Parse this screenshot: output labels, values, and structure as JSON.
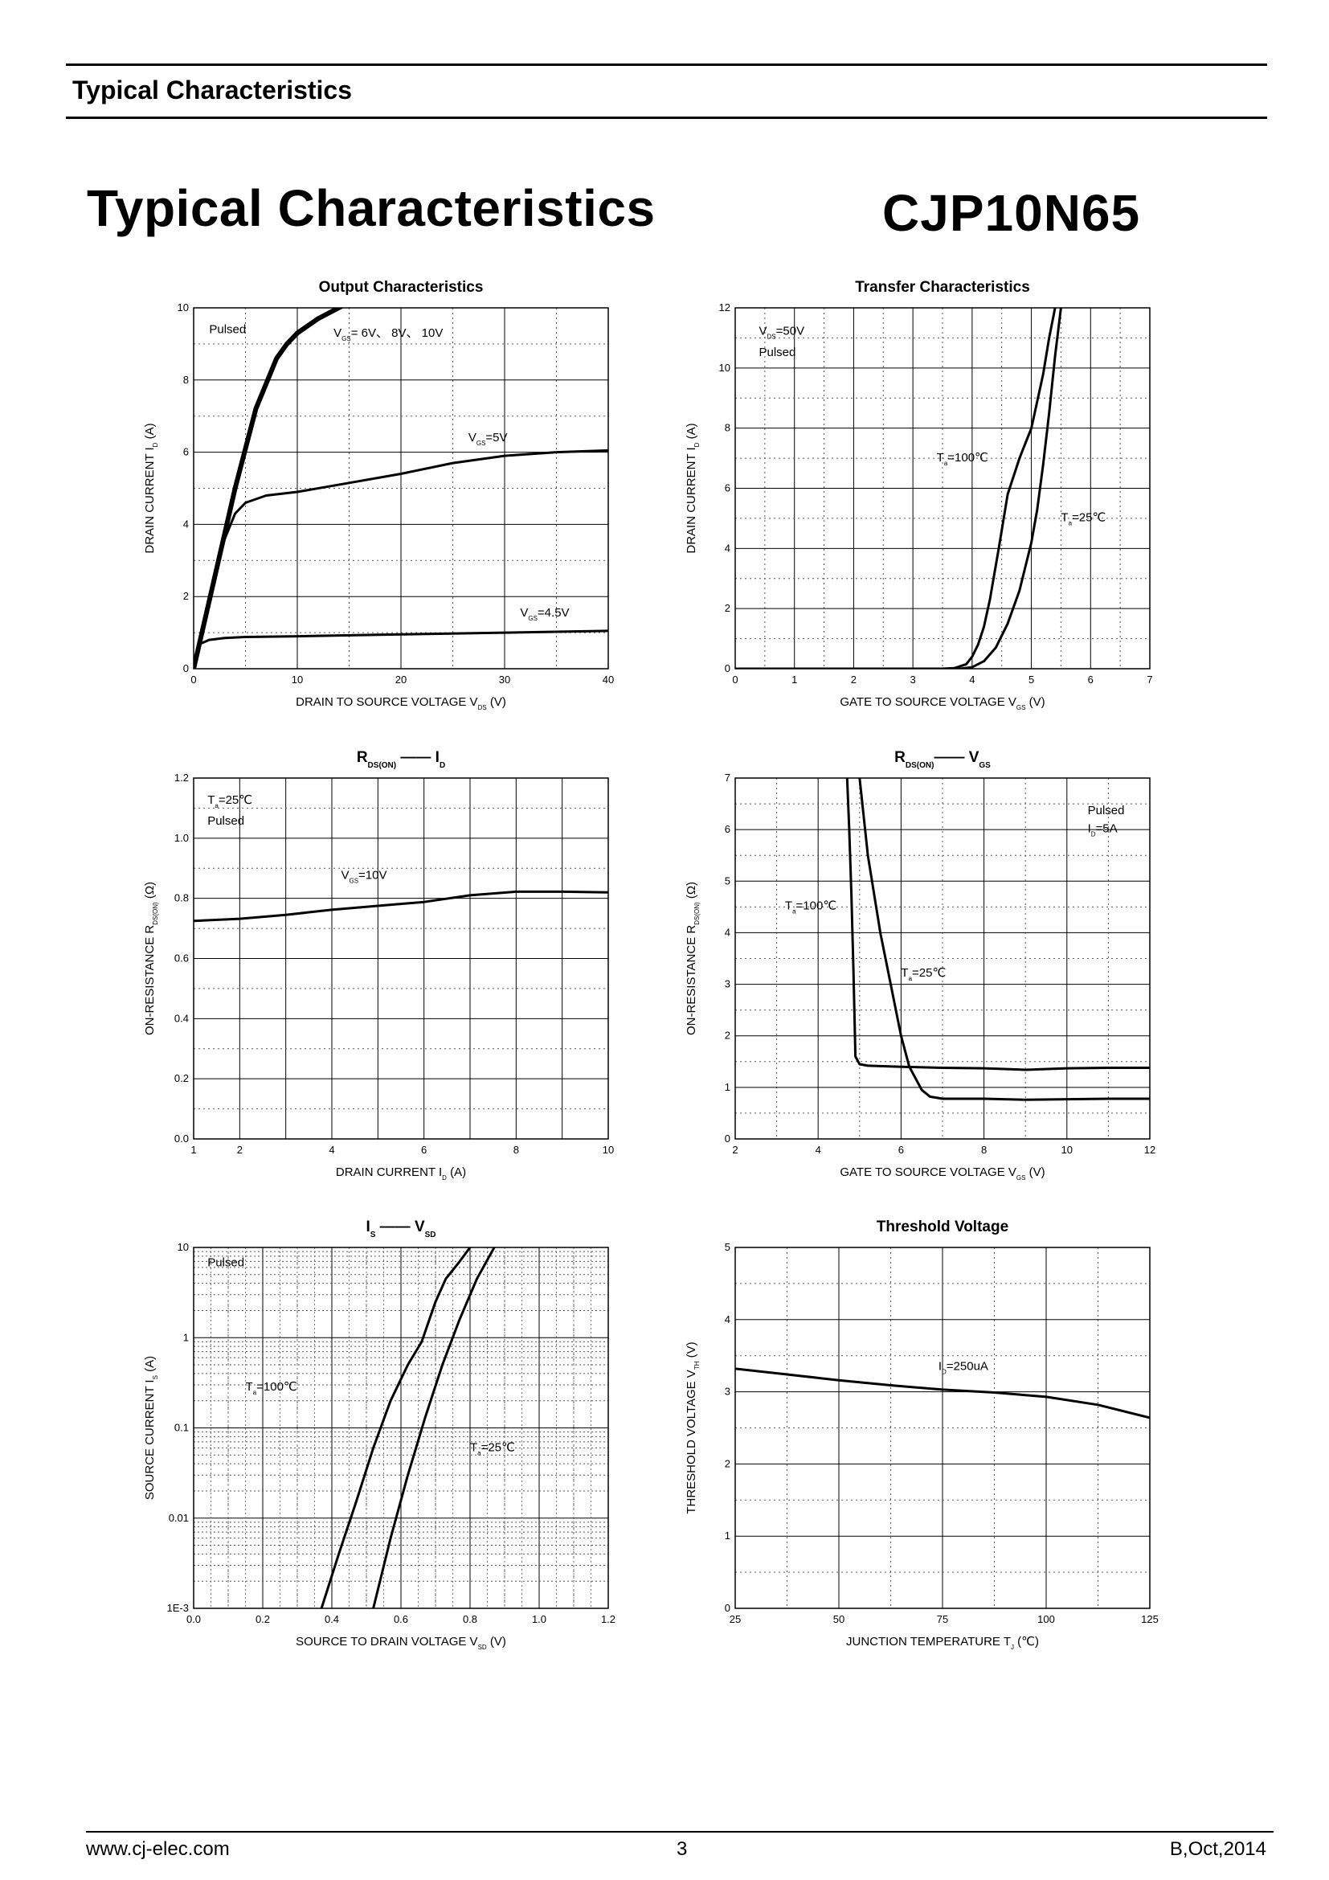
{
  "header": {
    "section_title": "Typical Characteristics"
  },
  "page_title": "Typical Characteristics",
  "part_number": "CJP10N65",
  "footer": {
    "website": "www.cj-elec.com",
    "page_number": "3",
    "revision": "B,Oct,2014"
  },
  "colors": {
    "ink": "#000000",
    "paper": "#ffffff"
  },
  "chart_data": [
    {
      "id": "output",
      "type": "line",
      "title": [
        {
          "t": "Output Characteristics"
        }
      ],
      "xlabel": [
        {
          "t": "DRAIN TO SOURCE VOLTAGE"
        },
        {
          "t": "V"
        },
        {
          "t": "DS",
          "sub": true
        },
        {
          "t": "(V)"
        }
      ],
      "ylabel": [
        {
          "t": "DRAIN CURRENT"
        },
        {
          "t": "I"
        },
        {
          "t": "D",
          "sub": true
        },
        {
          "t": "(A)"
        }
      ],
      "xlim": [
        0,
        40
      ],
      "ylim": [
        0,
        10
      ],
      "xticks": [
        "0",
        "10",
        "20",
        "30",
        "40"
      ],
      "yticks": [
        "0",
        "2",
        "4",
        "6",
        "8",
        "10"
      ],
      "notes": [
        {
          "x": 1.5,
          "y": 9.3,
          "text": [
            {
              "t": "Pulsed"
            }
          ]
        },
        {
          "x": 13.5,
          "y": 9.2,
          "text": [
            {
              "t": "V"
            },
            {
              "t": "GS",
              "sub": true
            },
            {
              "t": "= 6V、 8V、 10V"
            }
          ]
        },
        {
          "x": 26.5,
          "y": 6.3,
          "text": [
            {
              "t": "V"
            },
            {
              "t": "GS",
              "sub": true
            },
            {
              "t": "=5V"
            }
          ]
        },
        {
          "x": 31.5,
          "y": 1.45,
          "text": [
            {
              "t": "V"
            },
            {
              "t": "GS",
              "sub": true
            },
            {
              "t": "=4.5V"
            }
          ]
        }
      ],
      "series": [
        {
          "name": "VGS = 6V, 8V, 10V",
          "width": 6,
          "x": [
            0,
            2,
            4,
            6,
            8,
            9,
            10,
            12,
            14,
            15
          ],
          "y": [
            0,
            2.5,
            5,
            7.2,
            8.6,
            9.0,
            9.3,
            9.7,
            10.0,
            10.15
          ]
        },
        {
          "name": "VGS = 5V",
          "width": 3,
          "x": [
            0,
            2,
            3,
            4,
            5,
            7,
            10,
            15,
            20,
            25,
            30,
            35,
            40
          ],
          "y": [
            0,
            2.6,
            3.6,
            4.3,
            4.6,
            4.8,
            4.9,
            5.15,
            5.4,
            5.7,
            5.9,
            6.0,
            6.05
          ]
        },
        {
          "name": "VGS = 4.5V",
          "width": 3,
          "x": [
            0,
            0.3,
            0.7,
            1.5,
            3,
            5,
            10,
            20,
            30,
            40
          ],
          "y": [
            0,
            0.5,
            0.7,
            0.8,
            0.85,
            0.88,
            0.9,
            0.95,
            1.0,
            1.05
          ]
        }
      ]
    },
    {
      "id": "transfer",
      "type": "line",
      "title": [
        {
          "t": "Transfer Characteristics"
        }
      ],
      "xlabel": [
        {
          "t": "GATE TO SOURCE VOLTAGE"
        },
        {
          "t": "V"
        },
        {
          "t": "GS",
          "sub": true
        },
        {
          "t": "(V)"
        }
      ],
      "ylabel": [
        {
          "t": "DRAIN CURRENT"
        },
        {
          "t": "I"
        },
        {
          "t": "D",
          "sub": true
        },
        {
          "t": "(A)"
        }
      ],
      "xlim": [
        0,
        7
      ],
      "ylim": [
        0,
        12
      ],
      "xticks": [
        "0",
        "1",
        "2",
        "3",
        "4",
        "5",
        "6",
        "7"
      ],
      "yticks": [
        "0",
        "2",
        "4",
        "6",
        "8",
        "10",
        "12"
      ],
      "notes": [
        {
          "x": 0.4,
          "y": 11.1,
          "text": [
            {
              "t": "V"
            },
            {
              "t": "DS",
              "sub": true
            },
            {
              "t": "=50V"
            }
          ]
        },
        {
          "x": 0.4,
          "y": 10.4,
          "text": [
            {
              "t": "Pulsed"
            }
          ]
        },
        {
          "x": 3.4,
          "y": 6.9,
          "text": [
            {
              "t": "T"
            },
            {
              "t": "a",
              "sub": true
            },
            {
              "t": "=100℃"
            }
          ]
        },
        {
          "x": 5.5,
          "y": 4.9,
          "text": [
            {
              "t": "T"
            },
            {
              "t": "a",
              "sub": true
            },
            {
              "t": "=25℃"
            }
          ]
        }
      ],
      "series": [
        {
          "name": "Ta = 100°C",
          "width": 3,
          "x": [
            0,
            3.5,
            3.7,
            3.9,
            4.0,
            4.1,
            4.2,
            4.3,
            4.45,
            4.6,
            4.8,
            5.0,
            5.2,
            5.3,
            5.4
          ],
          "y": [
            0,
            0,
            0.02,
            0.15,
            0.4,
            0.8,
            1.4,
            2.3,
            4.0,
            5.8,
            7.0,
            8.0,
            9.8,
            11.0,
            12.0
          ]
        },
        {
          "name": "Ta = 25°C",
          "width": 3,
          "x": [
            0,
            3.8,
            4.0,
            4.2,
            4.4,
            4.6,
            4.8,
            5.0,
            5.1,
            5.2,
            5.3,
            5.4,
            5.5
          ],
          "y": [
            0,
            0,
            0.05,
            0.25,
            0.7,
            1.5,
            2.6,
            4.2,
            5.3,
            6.8,
            8.5,
            10.4,
            12.0
          ]
        }
      ]
    },
    {
      "id": "rds-id",
      "type": "line",
      "title": [
        {
          "t": "R"
        },
        {
          "t": "DS(ON)",
          "sub": true
        },
        {
          "t": " —— I"
        },
        {
          "t": "D",
          "sub": true
        }
      ],
      "xlabel": [
        {
          "t": "DRAIN CURRENT"
        },
        {
          "t": "I"
        },
        {
          "t": "D",
          "sub": true
        },
        {
          "t": "(A)"
        }
      ],
      "ylabel": [
        {
          "t": "ON-RESISTANCE"
        },
        {
          "t": "R"
        },
        {
          "t": "DS(ON)",
          "sub": true
        },
        {
          "t": "(Ω)"
        }
      ],
      "xlim": [
        1,
        10
      ],
      "ylim": [
        0,
        1.2
      ],
      "xticks": [
        "1",
        "2",
        "4",
        "6",
        "8",
        "10"
      ],
      "xtick_values": [
        1,
        2,
        4,
        6,
        8,
        10
      ],
      "xgrid": [
        2,
        3,
        4,
        5,
        6,
        7,
        8,
        9
      ],
      "yticks": [
        "0.0",
        "0.2",
        "0.4",
        "0.6",
        "0.8",
        "1.0",
        "1.2"
      ],
      "notes": [
        {
          "x": 1.3,
          "y": 1.115,
          "text": [
            {
              "t": "T"
            },
            {
              "t": "a",
              "sub": true
            },
            {
              "t": "=25℃"
            }
          ]
        },
        {
          "x": 1.3,
          "y": 1.045,
          "text": [
            {
              "t": "Pulsed"
            }
          ]
        },
        {
          "x": 4.2,
          "y": 0.865,
          "text": [
            {
              "t": "V"
            },
            {
              "t": "GS",
              "sub": true
            },
            {
              "t": "=10V"
            }
          ]
        }
      ],
      "series": [
        {
          "name": "VGS = 10V",
          "width": 3,
          "x": [
            1,
            2,
            3,
            4,
            5,
            6,
            7,
            8,
            9,
            10
          ],
          "y": [
            0.725,
            0.732,
            0.745,
            0.762,
            0.775,
            0.788,
            0.81,
            0.822,
            0.822,
            0.82
          ]
        }
      ]
    },
    {
      "id": "rds-vgs",
      "type": "line",
      "title": [
        {
          "t": "R"
        },
        {
          "t": "DS(ON)",
          "sub": true
        },
        {
          "t": "—— V"
        },
        {
          "t": "GS",
          "sub": true
        }
      ],
      "xlabel": [
        {
          "t": "GATE TO SOURCE VOLTAGE"
        },
        {
          "t": "V"
        },
        {
          "t": "GS",
          "sub": true
        },
        {
          "t": "(V)"
        }
      ],
      "ylabel": [
        {
          "t": "ON-RESISTANCE"
        },
        {
          "t": "R"
        },
        {
          "t": "DS(ON)",
          "sub": true
        },
        {
          "t": "(Ω)"
        }
      ],
      "xlim": [
        2,
        12
      ],
      "ylim": [
        0,
        7
      ],
      "xticks": [
        "2",
        "4",
        "6",
        "8",
        "10",
        "12"
      ],
      "yticks": [
        "0",
        "1",
        "2",
        "3",
        "4",
        "5",
        "6",
        "7"
      ],
      "notes": [
        {
          "x": 10.5,
          "y": 6.3,
          "text": [
            {
              "t": "Pulsed"
            }
          ]
        },
        {
          "x": 10.5,
          "y": 5.95,
          "text": [
            {
              "t": "I"
            },
            {
              "t": "D",
              "sub": true
            },
            {
              "t": "=5A"
            }
          ]
        },
        {
          "x": 3.2,
          "y": 4.45,
          "text": [
            {
              "t": "T"
            },
            {
              "t": "a",
              "sub": true
            },
            {
              "t": "=100℃"
            }
          ]
        },
        {
          "x": 6.0,
          "y": 3.15,
          "text": [
            {
              "t": "T"
            },
            {
              "t": "a",
              "sub": true
            },
            {
              "t": "=25℃"
            }
          ]
        }
      ],
      "series": [
        {
          "name": "Ta = 100°C",
          "width": 3,
          "x": [
            4.7,
            4.75,
            4.8,
            4.85,
            4.9,
            5.0,
            5.2,
            6.0,
            7.0,
            8.0,
            9.0,
            10.0,
            11.0,
            12.0
          ],
          "y": [
            7.0,
            6.0,
            4.8,
            3.3,
            1.6,
            1.45,
            1.42,
            1.4,
            1.38,
            1.37,
            1.34,
            1.37,
            1.38,
            1.38
          ]
        },
        {
          "name": "Ta = 25°C",
          "width": 3,
          "x": [
            5.0,
            5.2,
            5.5,
            5.8,
            6.0,
            6.2,
            6.5,
            6.7,
            7.0,
            8.0,
            9.0,
            10.0,
            11.0,
            12.0
          ],
          "y": [
            7.0,
            5.5,
            4.0,
            2.8,
            2.0,
            1.4,
            0.95,
            0.82,
            0.78,
            0.78,
            0.76,
            0.77,
            0.78,
            0.78
          ]
        }
      ]
    },
    {
      "id": "is-vsd",
      "type": "line",
      "scale": "log",
      "title": [
        {
          "t": "I"
        },
        {
          "t": "S",
          "sub": true
        },
        {
          "t": " —— V"
        },
        {
          "t": "SD",
          "sub": true
        }
      ],
      "xlabel": [
        {
          "t": "SOURCE TO DRAIN VOLTAGE"
        },
        {
          "t": "V"
        },
        {
          "t": "SD",
          "sub": true
        },
        {
          "t": "(V)"
        }
      ],
      "ylabel": [
        {
          "t": "SOURCE CURRENT"
        },
        {
          "t": "I"
        },
        {
          "t": "S",
          "sub": true
        },
        {
          "t": "(A)"
        }
      ],
      "xlim": [
        0,
        1.2
      ],
      "ylim": [
        0.001,
        10
      ],
      "xticks": [
        "0.0",
        "0.2",
        "0.4",
        "0.6",
        "0.8",
        "1.0",
        "1.2"
      ],
      "yticks": [
        "1E-3",
        "0.01",
        "0.1",
        "1",
        "10"
      ],
      "notes": [
        {
          "x": 0.04,
          "y": 6.2,
          "text": [
            {
              "t": "Pulsed"
            }
          ]
        },
        {
          "x": 0.15,
          "y": 0.26,
          "text": [
            {
              "t": "T"
            },
            {
              "t": "a",
              "sub": true
            },
            {
              "t": "=100℃"
            }
          ]
        },
        {
          "x": 0.8,
          "y": 0.055,
          "text": [
            {
              "t": "T"
            },
            {
              "t": "a",
              "sub": true
            },
            {
              "t": "=25℃"
            }
          ]
        }
      ],
      "series": [
        {
          "name": "Ta = 100°C",
          "width": 3,
          "x": [
            0.37,
            0.42,
            0.47,
            0.52,
            0.57,
            0.62,
            0.66,
            0.7,
            0.73,
            0.77,
            0.8
          ],
          "y": [
            0.001,
            0.004,
            0.015,
            0.06,
            0.2,
            0.5,
            0.9,
            2.5,
            4.5,
            7.0,
            10.0
          ]
        },
        {
          "name": "Ta = 25°C",
          "width": 3,
          "x": [
            0.52,
            0.57,
            0.62,
            0.67,
            0.72,
            0.77,
            0.82,
            0.87
          ],
          "y": [
            0.001,
            0.006,
            0.03,
            0.13,
            0.5,
            1.6,
            4.5,
            10.0
          ]
        }
      ]
    },
    {
      "id": "vth",
      "type": "line",
      "title": [
        {
          "t": "Threshold Voltage"
        }
      ],
      "xlabel": [
        {
          "t": "JUNCTION TEMPERATURE"
        },
        {
          "t": "T"
        },
        {
          "t": "J",
          "sub": true
        },
        {
          "t": "(℃)"
        }
      ],
      "ylabel": [
        {
          "t": "THRESHOLD VOLTAGE"
        },
        {
          "t": "V"
        },
        {
          "t": "TH",
          "sub": true
        },
        {
          "t": "(V)"
        }
      ],
      "xlim": [
        25,
        125
      ],
      "ylim": [
        0,
        5
      ],
      "xticks": [
        "25",
        "50",
        "75",
        "100",
        "125"
      ],
      "yticks": [
        "0",
        "1",
        "2",
        "3",
        "4",
        "5"
      ],
      "notes": [
        {
          "x": 74,
          "y": 3.3,
          "text": [
            {
              "t": "I"
            },
            {
              "t": "D",
              "sub": true
            },
            {
              "t": "=250uA"
            }
          ]
        }
      ],
      "series": [
        {
          "name": "ID = 250uA",
          "width": 3,
          "x": [
            25,
            37.5,
            50,
            62.5,
            75,
            87.5,
            100,
            112.5,
            125
          ],
          "y": [
            3.32,
            3.24,
            3.16,
            3.09,
            3.03,
            2.99,
            2.93,
            2.82,
            2.64
          ]
        }
      ]
    }
  ]
}
